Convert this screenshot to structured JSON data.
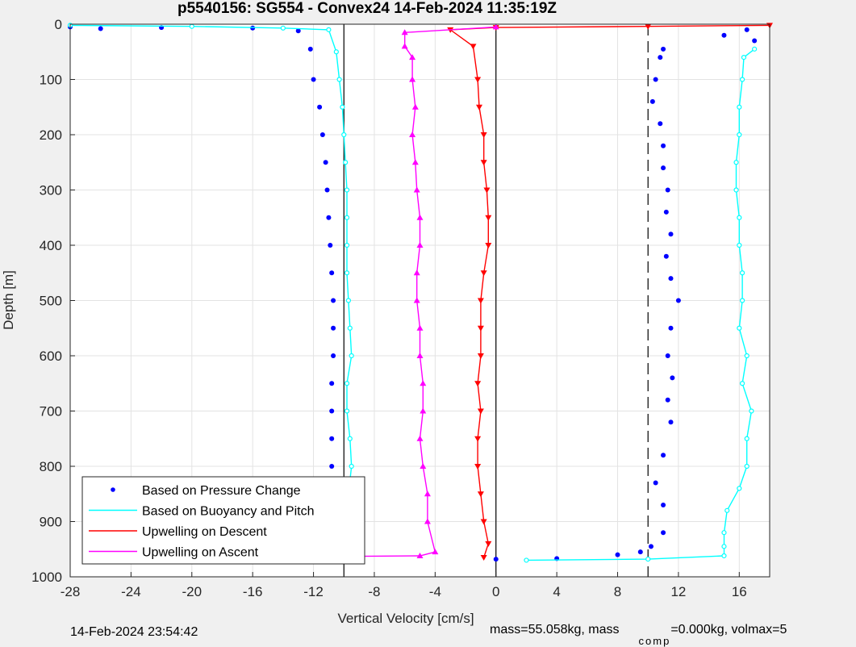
{
  "footer": {
    "timestamp": "14-Feb-2024 23:54:42",
    "mass_text": "mass=55.058kg, mass",
    "comp_sub": "comp",
    "mass_comp_text": "=0.000kg, volmax=5"
  },
  "colors": {
    "pressure": "#0000ff",
    "buoyancy": "#00ffff",
    "descent": "#ff0000",
    "ascent": "#ff00ff",
    "background": "#f0f0f0",
    "axes_bg": "#ffffff"
  },
  "chart_data": {
    "type": "scatter",
    "title": "p5540156: SG554 - Convex24 14-Feb-2024 11:35:19Z",
    "xlabel": "Vertical Velocity [cm/s]",
    "ylabel": "Depth [m]",
    "xlim": [
      -28,
      18
    ],
    "ylim": [
      0,
      1000
    ],
    "y_reversed": true,
    "grid": true,
    "xticks": [
      -28,
      -24,
      -20,
      -16,
      -12,
      -8,
      -4,
      0,
      4,
      8,
      12,
      16
    ],
    "yticks": [
      0,
      100,
      200,
      300,
      400,
      500,
      600,
      700,
      800,
      900,
      1000
    ],
    "vertical_lines": [
      {
        "x": -10,
        "style": "solid"
      },
      {
        "x": 0,
        "style": "solid"
      },
      {
        "x": 10,
        "style": "dashed"
      }
    ],
    "legend": {
      "position": "bottom-left",
      "entries": [
        {
          "label": "Based on Pressure Change",
          "color": "#0000ff",
          "marker": "dot"
        },
        {
          "label": "Based on Buoyancy and Pitch",
          "color": "#00ffff",
          "marker": "line"
        },
        {
          "label": "Upwelling on Descent",
          "color": "#ff0000",
          "marker": "line"
        },
        {
          "label": "Upwelling on Ascent",
          "color": "#ff00ff",
          "marker": "line"
        }
      ]
    },
    "series": [
      {
        "name": "Based on Pressure Change",
        "phase": "descent",
        "points": [
          [
            -28,
            5
          ],
          [
            -26,
            8
          ],
          [
            -22,
            6
          ],
          [
            -16,
            7
          ],
          [
            -13,
            12
          ],
          [
            -12.2,
            45
          ],
          [
            -12,
            100
          ],
          [
            -11.6,
            150
          ],
          [
            -11.4,
            200
          ],
          [
            -11.2,
            250
          ],
          [
            -11.1,
            300
          ],
          [
            -11,
            350
          ],
          [
            -10.9,
            400
          ],
          [
            -10.8,
            450
          ],
          [
            -10.7,
            500
          ],
          [
            -10.7,
            550
          ],
          [
            -10.7,
            600
          ],
          [
            -10.8,
            650
          ],
          [
            -10.8,
            700
          ],
          [
            -10.8,
            750
          ],
          [
            -10.8,
            800
          ],
          [
            -10.5,
            850
          ],
          [
            -10.3,
            900
          ],
          [
            -10.2,
            940
          ],
          [
            -10,
            960
          ]
        ]
      },
      {
        "name": "Based on Pressure Change",
        "phase": "ascent",
        "points": [
          [
            0,
            968
          ],
          [
            4,
            967
          ],
          [
            8,
            960
          ],
          [
            9.5,
            955
          ],
          [
            10.2,
            945
          ],
          [
            11,
            920
          ],
          [
            11,
            870
          ],
          [
            10.5,
            830
          ],
          [
            11,
            780
          ],
          [
            11.5,
            720
          ],
          [
            11.3,
            680
          ],
          [
            11.6,
            640
          ],
          [
            11.3,
            600
          ],
          [
            11.5,
            550
          ],
          [
            12,
            500
          ],
          [
            11.5,
            460
          ],
          [
            11.2,
            420
          ],
          [
            11.5,
            380
          ],
          [
            11.2,
            340
          ],
          [
            11.3,
            300
          ],
          [
            11,
            260
          ],
          [
            11,
            220
          ],
          [
            10.8,
            180
          ],
          [
            10.3,
            140
          ],
          [
            10.5,
            100
          ],
          [
            10.8,
            60
          ],
          [
            11,
            45
          ],
          [
            15,
            20
          ],
          [
            16.5,
            10
          ],
          [
            17,
            30
          ]
        ]
      },
      {
        "name": "Based on Buoyancy and Pitch",
        "phase": "descent",
        "points": [
          [
            -28,
            2
          ],
          [
            -20,
            4
          ],
          [
            -14,
            7
          ],
          [
            -11,
            10
          ],
          [
            -10.5,
            50
          ],
          [
            -10.3,
            100
          ],
          [
            -10.1,
            150
          ],
          [
            -10,
            200
          ],
          [
            -9.9,
            250
          ],
          [
            -9.8,
            300
          ],
          [
            -9.8,
            350
          ],
          [
            -9.8,
            400
          ],
          [
            -9.8,
            450
          ],
          [
            -9.7,
            500
          ],
          [
            -9.6,
            550
          ],
          [
            -9.5,
            600
          ],
          [
            -9.8,
            650
          ],
          [
            -9.8,
            700
          ],
          [
            -9.6,
            750
          ],
          [
            -9.5,
            800
          ],
          [
            -9.7,
            850
          ],
          [
            -9.7,
            900
          ],
          [
            -9.8,
            950
          ]
        ]
      },
      {
        "name": "Based on Buoyancy and Pitch",
        "phase": "ascent",
        "points": [
          [
            2,
            970
          ],
          [
            10,
            968
          ],
          [
            15,
            962
          ],
          [
            15,
            945
          ],
          [
            15,
            920
          ],
          [
            15.2,
            880
          ],
          [
            16,
            840
          ],
          [
            16.5,
            800
          ],
          [
            16.5,
            750
          ],
          [
            16.8,
            700
          ],
          [
            16.2,
            650
          ],
          [
            16.5,
            600
          ],
          [
            16,
            550
          ],
          [
            16.2,
            500
          ],
          [
            16.2,
            450
          ],
          [
            16,
            400
          ],
          [
            16,
            350
          ],
          [
            15.8,
            300
          ],
          [
            15.8,
            250
          ],
          [
            16,
            200
          ],
          [
            16,
            150
          ],
          [
            16.2,
            100
          ],
          [
            16.3,
            60
          ],
          [
            17,
            45
          ]
        ]
      },
      {
        "name": "Upwelling on Descent",
        "phase": "descent",
        "points": [
          [
            18,
            2
          ],
          [
            10,
            4
          ],
          [
            0,
            6
          ],
          [
            -3,
            10
          ],
          [
            -1.5,
            40
          ],
          [
            -1.2,
            100
          ],
          [
            -1.1,
            150
          ],
          [
            -0.8,
            200
          ],
          [
            -0.8,
            250
          ],
          [
            -0.6,
            300
          ],
          [
            -0.5,
            350
          ],
          [
            -0.5,
            400
          ],
          [
            -0.8,
            450
          ],
          [
            -1,
            500
          ],
          [
            -1,
            550
          ],
          [
            -1,
            600
          ],
          [
            -1.2,
            650
          ],
          [
            -1,
            700
          ],
          [
            -1.2,
            750
          ],
          [
            -1.2,
            800
          ],
          [
            -1,
            850
          ],
          [
            -0.8,
            900
          ],
          [
            -0.5,
            940
          ],
          [
            -0.8,
            965
          ]
        ]
      },
      {
        "name": "Upwelling on Ascent",
        "phase": "descent",
        "points": [
          [
            -10,
            963
          ],
          [
            -5,
            962
          ],
          [
            -4,
            955
          ],
          [
            -4.5,
            900
          ],
          [
            -4.5,
            850
          ],
          [
            -4.8,
            800
          ],
          [
            -5,
            750
          ],
          [
            -4.8,
            700
          ],
          [
            -4.8,
            650
          ],
          [
            -5,
            600
          ],
          [
            -5,
            550
          ],
          [
            -5.2,
            500
          ],
          [
            -5.2,
            450
          ],
          [
            -5,
            400
          ],
          [
            -5,
            350
          ],
          [
            -5.2,
            300
          ],
          [
            -5.3,
            250
          ],
          [
            -5.5,
            200
          ],
          [
            -5.3,
            150
          ],
          [
            -5.5,
            100
          ],
          [
            -5.5,
            60
          ],
          [
            -6,
            40
          ],
          [
            -6,
            15
          ],
          [
            0,
            5
          ]
        ]
      }
    ]
  }
}
